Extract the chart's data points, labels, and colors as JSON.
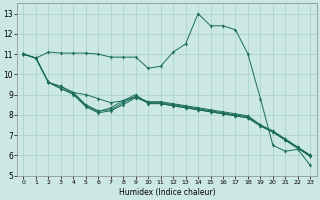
{
  "xlabel": "Humidex (Indice chaleur)",
  "bg_color": "#cce8e4",
  "grid_color": "#aacfcb",
  "line_color": "#1a6b5a",
  "ylim": [
    5,
    13.5
  ],
  "xlim": [
    -0.5,
    23.5
  ],
  "yticks": [
    5,
    6,
    7,
    8,
    9,
    10,
    11,
    12,
    13
  ],
  "x_ticks": [
    0,
    1,
    2,
    3,
    4,
    5,
    6,
    7,
    8,
    9,
    10,
    11,
    12,
    13,
    14,
    15,
    16,
    17,
    18,
    19,
    20,
    21,
    22,
    23
  ],
  "main_line_x": [
    0,
    1,
    2,
    3,
    4,
    5,
    6,
    7,
    8,
    9,
    10,
    11,
    12,
    13,
    14,
    15,
    16,
    17,
    18,
    19,
    20,
    21,
    22,
    23
  ],
  "main_line_y": [
    11.0,
    10.8,
    11.1,
    11.05,
    11.05,
    11.05,
    11.0,
    10.85,
    10.85,
    10.85,
    10.3,
    10.4,
    11.1,
    11.5,
    13.0,
    12.4,
    12.4,
    12.2,
    11.0,
    8.8,
    6.5,
    6.2,
    6.3,
    5.5
  ],
  "line2_x": [
    0,
    1,
    2,
    3,
    4,
    5,
    6,
    7,
    8,
    9,
    10,
    11,
    12,
    13,
    14,
    15,
    16,
    17,
    18,
    19,
    20,
    21,
    22,
    23
  ],
  "line2_y": [
    11.0,
    10.8,
    9.6,
    9.4,
    9.1,
    9.0,
    8.8,
    8.6,
    8.7,
    8.9,
    8.65,
    8.65,
    8.55,
    8.45,
    8.35,
    8.25,
    8.15,
    8.05,
    7.95,
    7.5,
    7.2,
    6.8,
    6.4,
    6.0
  ],
  "line3_x": [
    0,
    1,
    2,
    3,
    4,
    5,
    6,
    7,
    8,
    9,
    10,
    11,
    12,
    13,
    14,
    15,
    16,
    17,
    18,
    19,
    20,
    21,
    22,
    23
  ],
  "line3_y": [
    11.0,
    10.8,
    9.6,
    9.4,
    9.1,
    8.5,
    8.2,
    8.25,
    8.6,
    8.9,
    8.6,
    8.6,
    8.5,
    8.4,
    8.3,
    8.2,
    8.1,
    8.0,
    7.9,
    7.5,
    7.2,
    6.8,
    6.4,
    6.0
  ],
  "line4_x": [
    0,
    1,
    2,
    3,
    4,
    5,
    6,
    7,
    8,
    9,
    10,
    11,
    12,
    13,
    14,
    15,
    16,
    17,
    18,
    19,
    20,
    21,
    22,
    23
  ],
  "line4_y": [
    11.0,
    10.8,
    9.6,
    9.3,
    9.05,
    8.45,
    8.15,
    8.35,
    8.7,
    9.0,
    8.55,
    8.55,
    8.45,
    8.35,
    8.25,
    8.15,
    8.05,
    7.95,
    7.85,
    7.45,
    7.15,
    6.75,
    6.35,
    5.95
  ],
  "line5_x": [
    0,
    1,
    2,
    3,
    4,
    5,
    6,
    7,
    8,
    9,
    10,
    11,
    12,
    13,
    14,
    15,
    16,
    17,
    18,
    19,
    20,
    21,
    22,
    23
  ],
  "line5_y": [
    11.0,
    10.8,
    9.6,
    9.3,
    9.0,
    8.4,
    8.1,
    8.2,
    8.5,
    8.85,
    8.6,
    8.55,
    8.45,
    8.35,
    8.25,
    8.15,
    8.05,
    7.95,
    7.85,
    7.45,
    7.15,
    6.75,
    6.35,
    5.95
  ]
}
